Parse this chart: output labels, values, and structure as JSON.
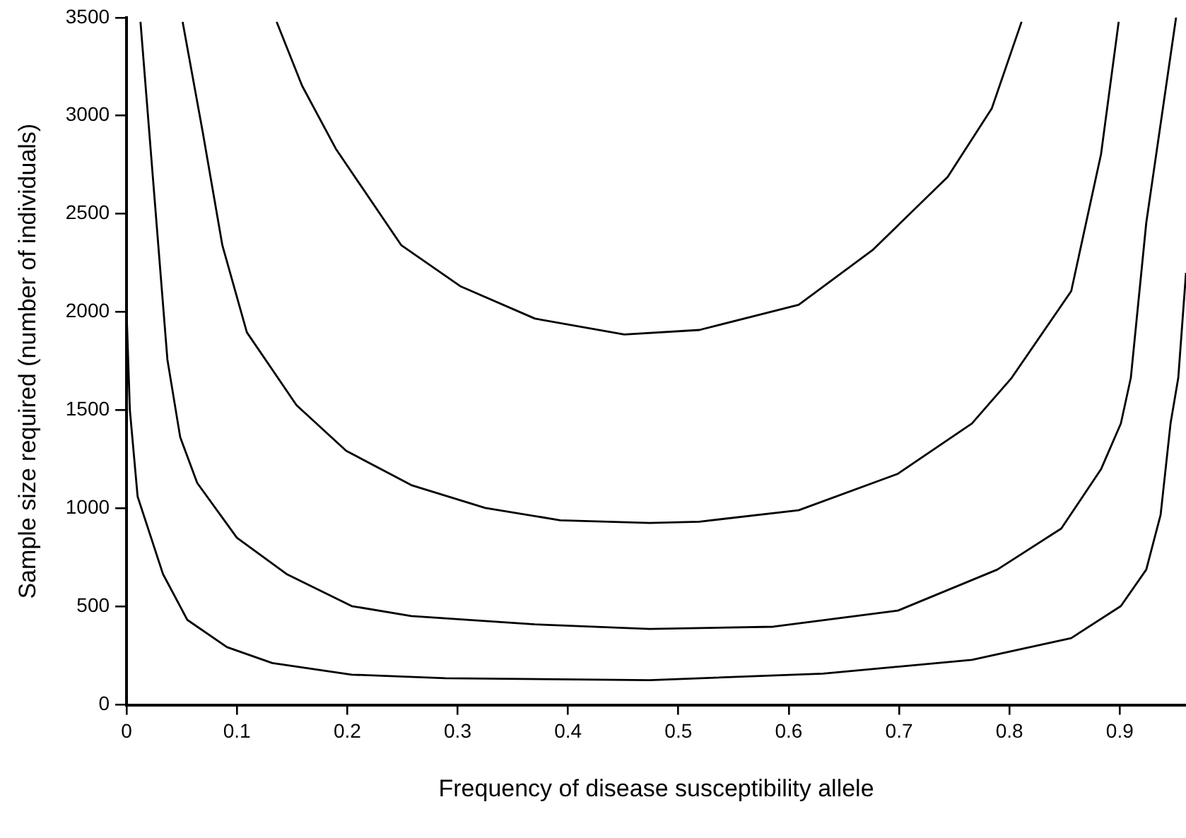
{
  "chart_data": {
    "type": "line",
    "xlabel": "Frequency of disease susceptibility allele",
    "ylabel": "Sample size required (number of individuals)",
    "xlim": [
      0,
      0.96
    ],
    "xticks": [
      0,
      0.1,
      0.2,
      0.3,
      0.4,
      0.5,
      0.6,
      0.7,
      0.8,
      0.9
    ],
    "ylim": [
      0,
      3500
    ],
    "yticks": [
      0,
      500,
      1000,
      1500,
      2000,
      2500,
      3000,
      3500
    ],
    "grid": false,
    "legend": false,
    "marker": "none",
    "line_style": "solid",
    "series": [
      {
        "color": "#000000",
        "x": [
          0,
          0.003,
          0.01,
          0.033,
          0.055,
          0.091,
          0.132,
          0.204,
          0.289,
          0.474,
          0.631,
          0.766,
          0.856,
          0.901,
          0.924,
          0.937,
          0.946,
          0.953,
          0.96
        ],
        "values": [
          2000,
          1500,
          1061,
          666,
          433,
          294,
          213,
          154,
          136,
          126,
          159,
          229,
          340,
          503,
          689,
          968,
          1433,
          1665,
          2200
        ]
      },
      {
        "color": "#000000",
        "x": [
          0.0126,
          0.0238,
          0.037,
          0.0486,
          0.064,
          0.1,
          0.145,
          0.204,
          0.258,
          0.37,
          0.474,
          0.586,
          0.699,
          0.789,
          0.847,
          0.883,
          0.901,
          0.91,
          0.924,
          0.951
        ],
        "values": [
          3478,
          2688,
          1758,
          1363,
          1130,
          851,
          666,
          503,
          452,
          410,
          387,
          398,
          480,
          689,
          898,
          1200,
          1433,
          1665,
          2455,
          3500
        ]
      },
      {
        "color": "#000000",
        "x": [
          0.0508,
          0.0689,
          0.0868,
          0.109,
          0.154,
          0.199,
          0.258,
          0.325,
          0.393,
          0.474,
          0.519,
          0.609,
          0.699,
          0.766,
          0.802,
          0.856,
          0.883,
          0.899
        ],
        "values": [
          3478,
          2920,
          2340,
          1897,
          1526,
          1294,
          1119,
          1003,
          940,
          926,
          933,
          991,
          1177,
          1433,
          1665,
          2107,
          2804,
          3478
        ]
      },
      {
        "color": "#000000",
        "x": [
          0.136,
          0.159,
          0.19,
          0.249,
          0.303,
          0.37,
          0.451,
          0.519,
          0.609,
          0.676,
          0.744,
          0.784,
          0.811
        ],
        "values": [
          3478,
          3153,
          2828,
          2340,
          2130,
          1967,
          1886,
          1909,
          2037,
          2316,
          2688,
          3037,
          3478
        ]
      }
    ]
  }
}
